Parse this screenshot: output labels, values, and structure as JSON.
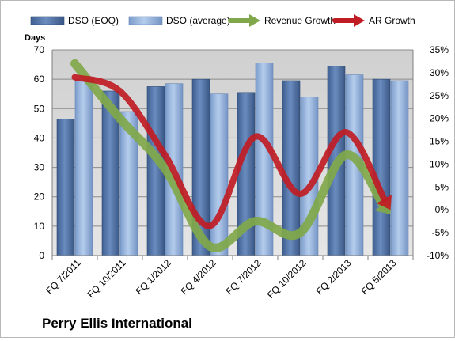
{
  "company_name": "Perry Ellis International",
  "colors": {
    "dso_eoq": "#4a6a9a",
    "dso_avg": "#8fb1dc",
    "revenue_growth": "#80a84a",
    "ar_growth": "#c01c24",
    "plot_bg": "#dadada"
  },
  "chart_data": {
    "type": "bar",
    "categories": [
      "FQ 7/2011",
      "FQ 10/2011",
      "FQ 1/2012",
      "FQ 4/2012",
      "FQ 7/2012",
      "FQ 10/2012",
      "FQ 2/2013",
      "FQ 5/2013"
    ],
    "ylabel": "Days",
    "ylim": [
      0,
      70
    ],
    "yticks": [
      "0",
      "10",
      "20",
      "30",
      "40",
      "50",
      "60",
      "70"
    ],
    "y2lim": [
      -10,
      35
    ],
    "y2ticks": [
      "-10%",
      "-5%",
      "0%",
      "5%",
      "10%",
      "15%",
      "20%",
      "25%",
      "30%",
      "35%"
    ],
    "grid": true,
    "legend_position": "top",
    "series": [
      {
        "name": "DSO (EOQ)",
        "type": "bar",
        "axis": "left",
        "values": [
          46.5,
          56,
          57.5,
          60,
          55.5,
          59.5,
          64.5,
          60
        ]
      },
      {
        "name": "DSO (average)",
        "type": "bar",
        "axis": "left",
        "values": [
          60,
          49,
          58.5,
          55,
          65.5,
          54,
          61.5,
          59.5
        ]
      },
      {
        "name": "Revenue Growth",
        "type": "line",
        "axis": "right",
        "values": [
          32,
          20,
          9,
          -8,
          -2.5,
          -5,
          12,
          -1
        ]
      },
      {
        "name": "AR Growth",
        "type": "line",
        "axis": "right",
        "values": [
          29,
          26,
          12,
          -3.5,
          16,
          3.5,
          17,
          0
        ]
      }
    ]
  }
}
